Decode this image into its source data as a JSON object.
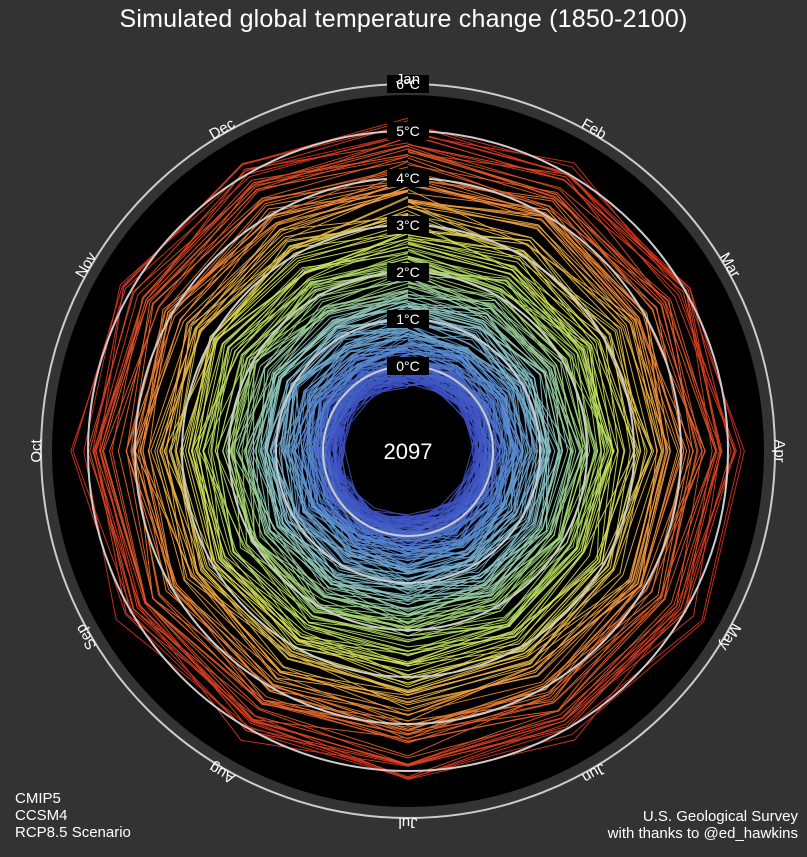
{
  "chart_data": {
    "type": "line",
    "subtype": "polar climate spiral",
    "title": "Simulated global temperature change (1850-2100)",
    "months": [
      "Jan",
      "Feb",
      "Mar",
      "Apr",
      "May",
      "Jun",
      "Jul",
      "Aug",
      "Sep",
      "Oct",
      "Nov",
      "Dec"
    ],
    "ring_labels": [
      "0°C",
      "1°C",
      "2°C",
      "3°C",
      "4°C",
      "5°C",
      "6°C"
    ],
    "ring_values": [
      0,
      1,
      2,
      3,
      4,
      5,
      6
    ],
    "r_range": [
      -1,
      6
    ],
    "current_year": "2097",
    "year_start": 1850,
    "year_end": 2097,
    "anomaly_start": -0.2,
    "anomaly_end": 5.2,
    "colors": {
      "background": "#333333",
      "plot_area": "#000000",
      "rings": "#cccccc",
      "scale": [
        "#3b4cc0",
        "#5a8fd0",
        "#8fc7c8",
        "#a6d96a",
        "#d7e35a",
        "#f5a442",
        "#e8602c",
        "#d7301f"
      ]
    }
  },
  "footer": {
    "left_lines": [
      "CMIP5",
      "CCSM4",
      "RCP8.5 Scenario"
    ],
    "right_lines": [
      "U.S. Geological Survey",
      "with thanks to @ed_hawkins"
    ]
  }
}
